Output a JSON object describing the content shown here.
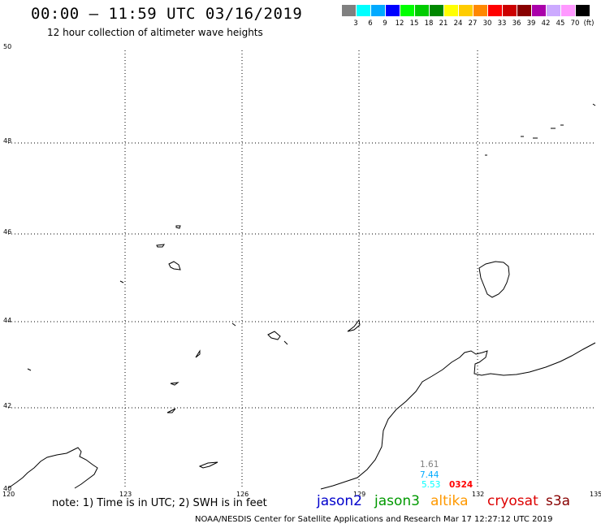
{
  "header": {
    "title": "00:00 — 11:59 UTC 03/16/2019",
    "subtitle": "12 hour collection of altimeter wave heights"
  },
  "legend": {
    "unit": "(ft)",
    "bins": [
      {
        "label": "3",
        "color": "#808080"
      },
      {
        "label": "6",
        "color": "#00ffff"
      },
      {
        "label": "9",
        "color": "#00aaff"
      },
      {
        "label": "12",
        "color": "#0000ff"
      },
      {
        "label": "15",
        "color": "#00ff00"
      },
      {
        "label": "18",
        "color": "#00cc00"
      },
      {
        "label": "21",
        "color": "#008800"
      },
      {
        "label": "24",
        "color": "#ffff00"
      },
      {
        "label": "27",
        "color": "#ffcc00"
      },
      {
        "label": "30",
        "color": "#ff8800"
      },
      {
        "label": "33",
        "color": "#ff0000"
      },
      {
        "label": "36",
        "color": "#cc0000"
      },
      {
        "label": "39",
        "color": "#880000"
      },
      {
        "label": "42",
        "color": "#aa00aa"
      },
      {
        "label": "45",
        "color": "#ccaaff"
      },
      {
        "label": "70",
        "color": "#ff99ff"
      },
      {
        "label": "",
        "color": "#000000"
      }
    ]
  },
  "map": {
    "lat_labels": [
      "50",
      "48",
      "46",
      "44",
      "42",
      "40"
    ],
    "lon_labels": [
      "120",
      "123",
      "126",
      "129",
      "132",
      "135"
    ],
    "lat_range": [
      40,
      50
    ],
    "lon_range": [
      120,
      135
    ]
  },
  "observations": [
    {
      "value": "1.61",
      "color": "#808080"
    },
    {
      "value": "7.44",
      "color": "#00aaff"
    },
    {
      "value": "5.53",
      "color": "#00ffff"
    },
    {
      "value": "0324",
      "color": "#ff0000"
    }
  ],
  "footer": {
    "note": "note:  1) Time is in UTC;  2) SWH is in feet",
    "satellites": [
      {
        "name": "jason2",
        "color": "#0000cc"
      },
      {
        "name": "jason3",
        "color": "#009900"
      },
      {
        "name": "altika",
        "color": "#ff9900"
      },
      {
        "name": "cryosat",
        "color": "#dd0000"
      },
      {
        "name": "s3a",
        "color": "#880000"
      }
    ],
    "credit": "NOAA/NESDIS Center for Satellite Applications and Research    Mar 17 12:27:12 UTC 2019"
  }
}
